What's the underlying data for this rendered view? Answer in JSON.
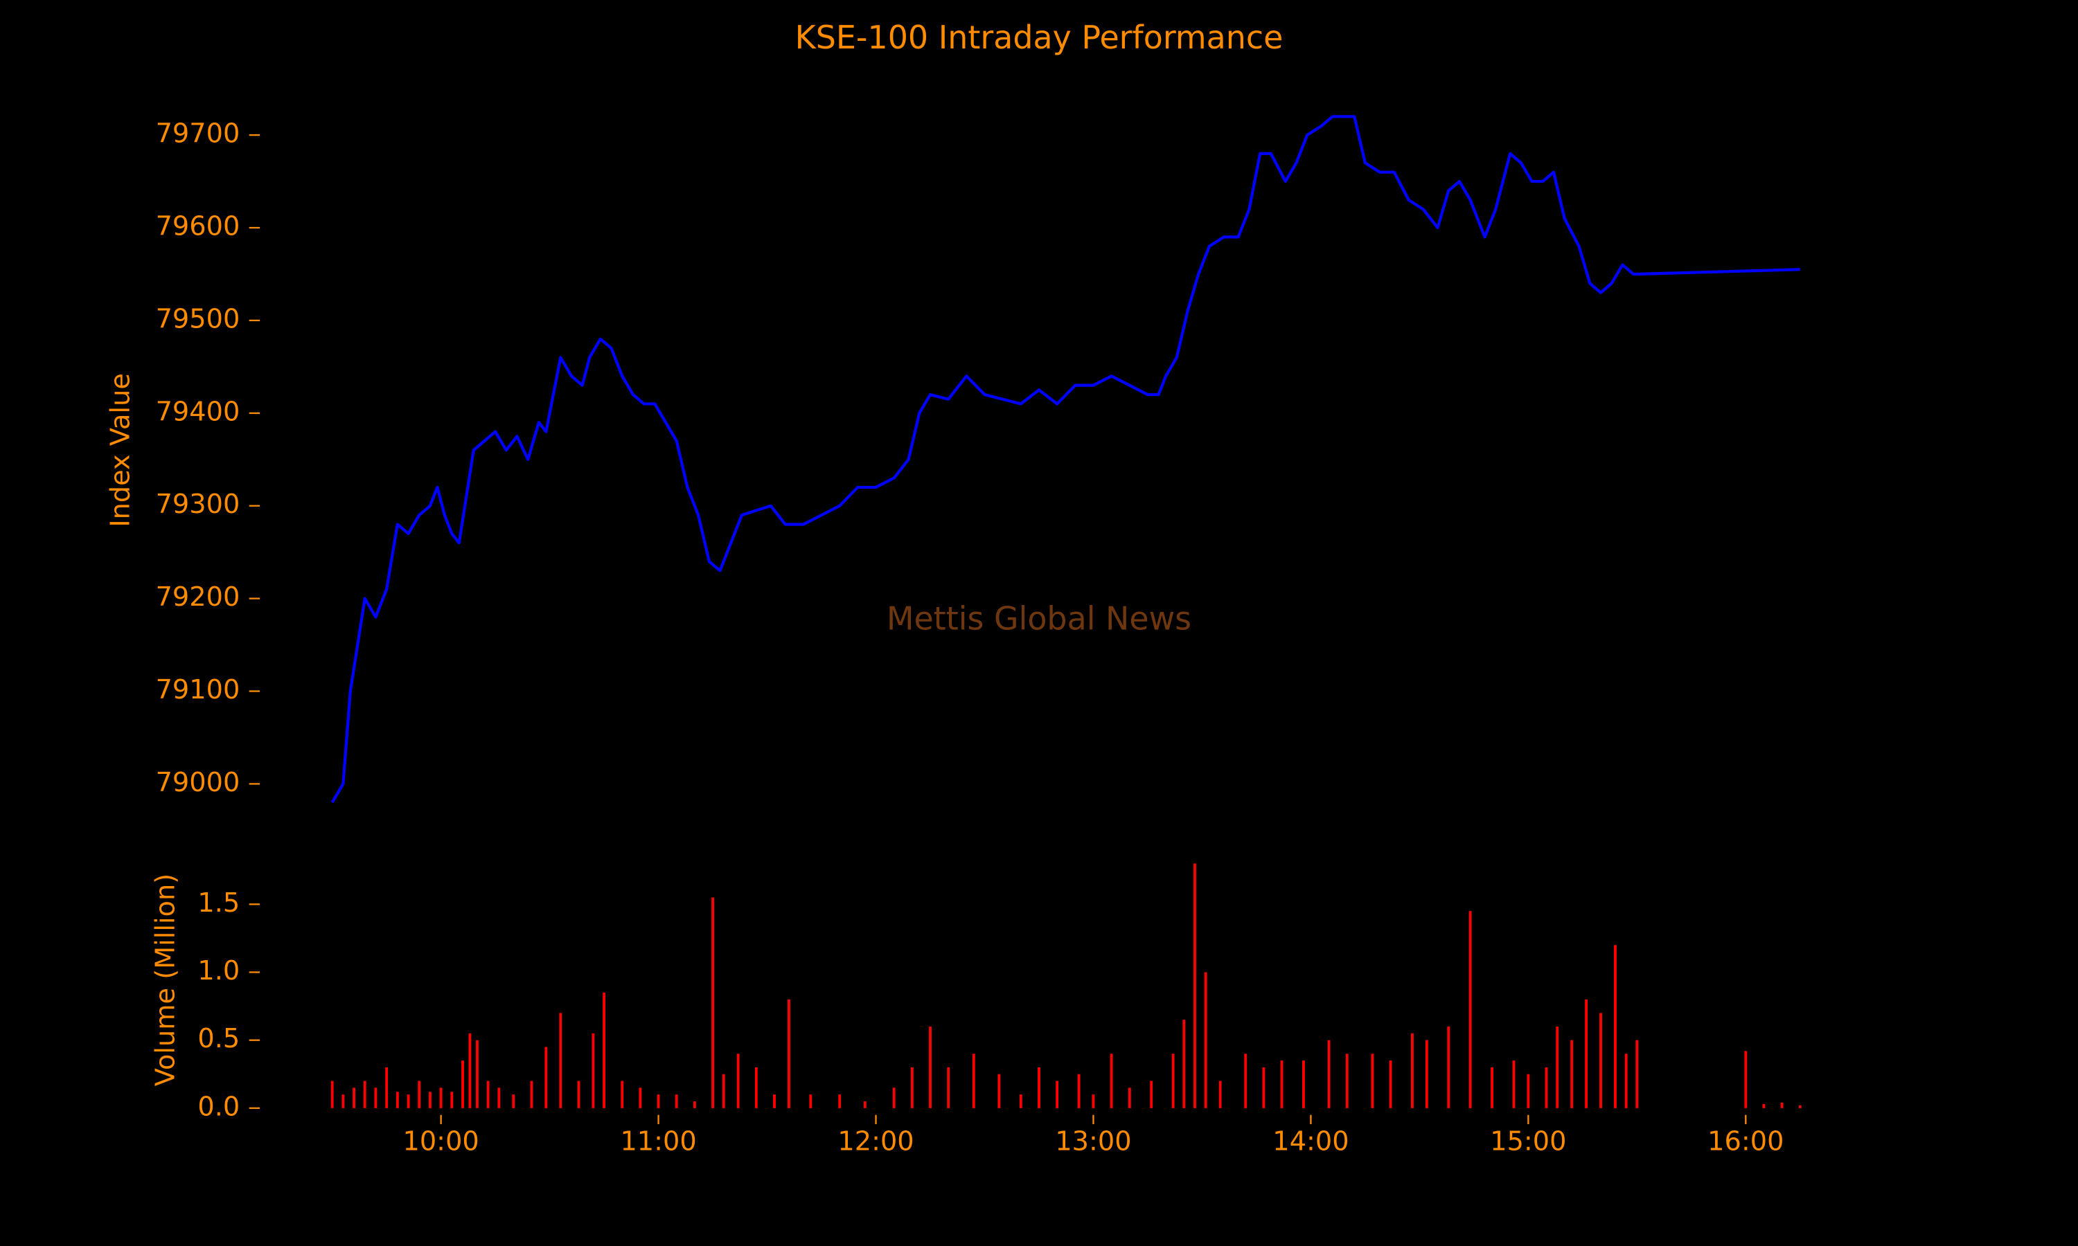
{
  "chart_data": [
    {
      "type": "line",
      "title": "KSE-100 Intraday Performance",
      "y_label": "Index Value",
      "annotation": "Mettis Global News",
      "color": "#0000ff",
      "xlim": [
        "09:10",
        "16:35"
      ],
      "ylim": [
        78960,
        79760
      ],
      "yticks": [
        79000,
        79100,
        79200,
        79300,
        79400,
        79500,
        79600,
        79700
      ],
      "x": [
        "09:30",
        "09:33",
        "09:35",
        "09:37",
        "09:39",
        "09:42",
        "09:45",
        "09:48",
        "09:51",
        "09:54",
        "09:57",
        "09:59",
        "10:01",
        "10:03",
        "10:05",
        "10:07",
        "10:09",
        "10:12",
        "10:15",
        "10:18",
        "10:21",
        "10:24",
        "10:27",
        "10:29",
        "10:31",
        "10:33",
        "10:36",
        "10:39",
        "10:41",
        "10:44",
        "10:47",
        "10:50",
        "10:53",
        "10:56",
        "10:59",
        "11:02",
        "11:05",
        "11:08",
        "11:11",
        "11:14",
        "11:17",
        "11:20",
        "11:23",
        "11:27",
        "11:31",
        "11:35",
        "11:40",
        "11:45",
        "11:50",
        "11:55",
        "12:00",
        "12:05",
        "12:09",
        "12:12",
        "12:15",
        "12:20",
        "12:25",
        "12:30",
        "12:35",
        "12:40",
        "12:45",
        "12:50",
        "12:55",
        "13:00",
        "13:05",
        "13:10",
        "13:15",
        "13:18",
        "13:20",
        "13:23",
        "13:26",
        "13:29",
        "13:32",
        "13:36",
        "13:40",
        "13:43",
        "13:46",
        "13:49",
        "13:53",
        "13:56",
        "13:59",
        "14:03",
        "14:06",
        "14:09",
        "14:12",
        "14:15",
        "14:19",
        "14:23",
        "14:27",
        "14:31",
        "14:35",
        "14:38",
        "14:41",
        "14:44",
        "14:48",
        "14:51",
        "14:55",
        "14:58",
        "15:01",
        "15:04",
        "15:07",
        "15:10",
        "15:14",
        "15:17",
        "15:20",
        "15:23",
        "15:26",
        "15:29",
        "15:30",
        "16:15"
      ],
      "values": [
        78980,
        79000,
        79100,
        79150,
        79200,
        79180,
        79210,
        79280,
        79270,
        79290,
        79300,
        79320,
        79290,
        79270,
        79260,
        79310,
        79360,
        79370,
        79380,
        79360,
        79375,
        79350,
        79390,
        79380,
        79420,
        79460,
        79440,
        79430,
        79460,
        79480,
        79470,
        79440,
        79420,
        79410,
        79410,
        79390,
        79370,
        79320,
        79290,
        79240,
        79230,
        79260,
        79290,
        79295,
        79300,
        79280,
        79280,
        79290,
        79300,
        79320,
        79320,
        79330,
        79350,
        79400,
        79420,
        79415,
        79440,
        79420,
        79415,
        79410,
        79425,
        79410,
        79430,
        79430,
        79440,
        79430,
        79420,
        79420,
        79440,
        79460,
        79510,
        79550,
        79580,
        79590,
        79590,
        79620,
        79680,
        79680,
        79650,
        79670,
        79700,
        79710,
        79720,
        79720,
        79720,
        79670,
        79660,
        79660,
        79630,
        79620,
        79600,
        79640,
        79650,
        79630,
        79590,
        79620,
        79680,
        79670,
        79650,
        79650,
        79660,
        79610,
        79580,
        79540,
        79530,
        79540,
        79560,
        79550,
        79550,
        79555
      ]
    },
    {
      "type": "bar",
      "y_label": "Volume (Million)",
      "color": "#ff0000",
      "xlim": [
        "09:10",
        "16:35"
      ],
      "xticks": [
        "10:00",
        "11:00",
        "12:00",
        "13:00",
        "14:00",
        "15:00",
        "16:00"
      ],
      "ylim": [
        -0.05,
        1.85
      ],
      "yticks": [
        {
          "value": 0,
          "label": "0.0"
        },
        0.5,
        {
          "value": 1,
          "label": "1.0"
        },
        1.5
      ],
      "x": [
        "09:30",
        "09:33",
        "09:36",
        "09:39",
        "09:42",
        "09:45",
        "09:48",
        "09:51",
        "09:54",
        "09:57",
        "10:00",
        "10:03",
        "10:06",
        "10:08",
        "10:10",
        "10:13",
        "10:16",
        "10:20",
        "10:25",
        "10:29",
        "10:33",
        "10:38",
        "10:42",
        "10:45",
        "10:50",
        "10:55",
        "11:00",
        "11:05",
        "11:10",
        "11:15",
        "11:18",
        "11:22",
        "11:27",
        "11:32",
        "11:36",
        "11:42",
        "11:50",
        "11:57",
        "12:05",
        "12:10",
        "12:15",
        "12:20",
        "12:27",
        "12:34",
        "12:40",
        "12:45",
        "12:50",
        "12:56",
        "13:00",
        "13:05",
        "13:10",
        "13:16",
        "13:22",
        "13:25",
        "13:28",
        "13:31",
        "13:35",
        "13:42",
        "13:47",
        "13:52",
        "13:58",
        "14:05",
        "14:10",
        "14:17",
        "14:22",
        "14:28",
        "14:32",
        "14:38",
        "14:44",
        "14:50",
        "14:56",
        "15:00",
        "15:05",
        "15:08",
        "15:12",
        "15:16",
        "15:20",
        "15:24",
        "15:27",
        "15:30",
        "16:00",
        "16:05",
        "16:10",
        "16:15"
      ],
      "values": [
        0.2,
        0.1,
        0.15,
        0.2,
        0.15,
        0.3,
        0.12,
        0.1,
        0.2,
        0.12,
        0.15,
        0.12,
        0.35,
        0.55,
        0.5,
        0.2,
        0.15,
        0.1,
        0.2,
        0.45,
        0.7,
        0.2,
        0.55,
        0.85,
        0.2,
        0.15,
        0.1,
        0.1,
        0.05,
        1.55,
        0.25,
        0.4,
        0.3,
        0.1,
        0.8,
        0.1,
        0.1,
        0.05,
        0.15,
        0.3,
        0.6,
        0.3,
        0.4,
        0.25,
        0.1,
        0.3,
        0.2,
        0.25,
        0.1,
        0.4,
        0.15,
        0.2,
        0.4,
        0.65,
        1.8,
        1.0,
        0.2,
        0.4,
        0.3,
        0.35,
        0.35,
        0.5,
        0.4,
        0.4,
        0.35,
        0.55,
        0.5,
        0.6,
        1.45,
        0.3,
        0.35,
        0.25,
        0.3,
        0.6,
        0.5,
        0.8,
        0.7,
        1.2,
        0.4,
        0.5,
        0.42,
        0.03,
        0.04,
        0.02
      ]
    }
  ]
}
